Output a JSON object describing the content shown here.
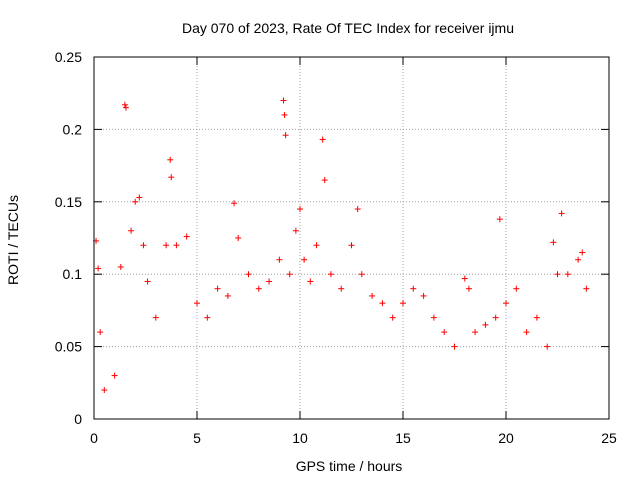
{
  "chart_data": {
    "type": "scatter",
    "title": "Day 070 of 2023, Rate Of TEC Index for receiver ijmu",
    "xlabel": "GPS time / hours",
    "ylabel": "ROTI / TECUs",
    "xlim": [
      0,
      25
    ],
    "ylim": [
      0,
      0.25
    ],
    "xticks": [
      0,
      5,
      10,
      15,
      20,
      25
    ],
    "xtick_labels": [
      "0",
      "5",
      "10",
      "15",
      "20",
      "25"
    ],
    "yticks": [
      0,
      0.05,
      0.1,
      0.15,
      0.2,
      0.25
    ],
    "ytick_labels": [
      "0",
      "0.05",
      "0.1",
      "0.15",
      "0.2",
      "0.25"
    ],
    "grid": true,
    "marker": "+",
    "colors": {
      "series": "#ff0000",
      "grid": "#a0a0a0",
      "axis": "#000000"
    },
    "series": [
      {
        "name": "ROTI",
        "x": [
          0.1,
          0.2,
          0.3,
          0.5,
          1.0,
          1.3,
          1.5,
          1.55,
          1.8,
          2.0,
          2.2,
          2.4,
          2.6,
          3.0,
          3.5,
          3.7,
          3.75,
          4.0,
          4.5,
          5.0,
          5.5,
          6.0,
          6.5,
          6.8,
          7.0,
          7.5,
          8.0,
          8.5,
          9.0,
          9.2,
          9.25,
          9.3,
          9.5,
          9.8,
          10.0,
          10.2,
          10.5,
          10.8,
          11.1,
          11.2,
          11.5,
          12.0,
          12.5,
          12.8,
          13.0,
          13.5,
          14.0,
          14.5,
          15.0,
          15.5,
          16.0,
          16.5,
          17.0,
          17.5,
          18.0,
          18.2,
          18.5,
          19.0,
          19.5,
          19.7,
          20.0,
          20.5,
          21.0,
          21.5,
          22.0,
          22.3,
          22.5,
          22.7,
          23.0,
          23.5,
          23.7,
          23.9
        ],
        "y": [
          0.123,
          0.104,
          0.06,
          0.02,
          0.03,
          0.105,
          0.217,
          0.215,
          0.13,
          0.15,
          0.153,
          0.12,
          0.095,
          0.07,
          0.12,
          0.179,
          0.167,
          0.12,
          0.126,
          0.08,
          0.07,
          0.09,
          0.085,
          0.149,
          0.125,
          0.1,
          0.09,
          0.095,
          0.11,
          0.22,
          0.21,
          0.196,
          0.1,
          0.13,
          0.145,
          0.11,
          0.095,
          0.12,
          0.193,
          0.165,
          0.1,
          0.09,
          0.12,
          0.145,
          0.1,
          0.085,
          0.08,
          0.07,
          0.08,
          0.09,
          0.085,
          0.07,
          0.06,
          0.05,
          0.097,
          0.09,
          0.06,
          0.065,
          0.07,
          0.138,
          0.08,
          0.09,
          0.06,
          0.07,
          0.05,
          0.122,
          0.1,
          0.142,
          0.1,
          0.11,
          0.115,
          0.09
        ]
      }
    ]
  }
}
